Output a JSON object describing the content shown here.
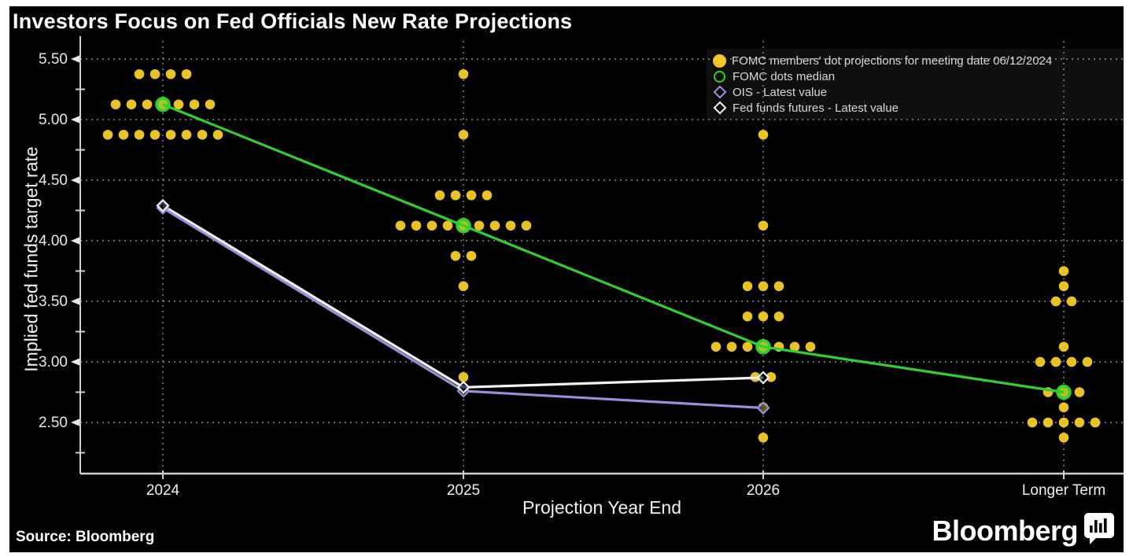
{
  "header": {
    "title": "Investors Focus on Fed Officials New Rate Projections"
  },
  "footer": {
    "source_label": "Source: Bloomberg",
    "brand": "Bloomberg",
    "brand_icon": "bar-chart-bubble-icon"
  },
  "legend": {
    "position": "top-right",
    "items": [
      {
        "label": "FOMC members' dot projections for meeting date 06/12/2024",
        "marker": "filled-circle",
        "color": "#EFC72B"
      },
      {
        "label": "FOMC dots median",
        "marker": "open-circle",
        "color": "#2FD02F"
      },
      {
        "label": "OIS - Latest value",
        "marker": "open-diamond",
        "color": "#9A8FD9"
      },
      {
        "label": "Fed funds futures - Latest value",
        "marker": "open-diamond",
        "color": "#F2F2F2"
      }
    ]
  },
  "chart_data": {
    "type": "scatter",
    "title": "Investors Focus on Fed Officials New Rate Projections",
    "xlabel": "Projection Year End",
    "ylabel": "Implied fed funds target rate",
    "categories": [
      "2024",
      "2025",
      "2026",
      "Longer Term"
    ],
    "y_ticks": [
      "5.50",
      "5.00",
      "4.50",
      "4.00",
      "3.50",
      "3.00",
      "2.50"
    ],
    "y_tick_values": [
      5.5,
      5.0,
      4.5,
      4.0,
      3.5,
      3.0,
      2.5
    ],
    "minor_tick_values": [
      5.25,
      4.75,
      4.25,
      3.75,
      3.25,
      2.75,
      2.25
    ],
    "ylim": [
      2.2,
      5.65
    ],
    "grid": "dashed-both-axes",
    "background": "#000000",
    "colors": {
      "dots": "#E8C227",
      "median": "#2FD02F",
      "ois": "#9A8FD9",
      "futures": "#F2F2F2",
      "grid": "#909090",
      "axis": "#cfcfcf",
      "tick_text": "#e8e8e8"
    },
    "series": [
      {
        "name": "FOMC members' dot projections for meeting date 06/12/2024",
        "type": "dot-plot",
        "color": "#E8C227",
        "clusters": [
          {
            "category": "2024",
            "dots": [
              {
                "rate": 5.375,
                "count": 4
              },
              {
                "rate": 5.125,
                "count": 7
              },
              {
                "rate": 4.875,
                "count": 8
              }
            ]
          },
          {
            "category": "2025",
            "dots": [
              {
                "rate": 5.375,
                "count": 1
              },
              {
                "rate": 4.875,
                "count": 1
              },
              {
                "rate": 4.375,
                "count": 4
              },
              {
                "rate": 4.125,
                "count": 9
              },
              {
                "rate": 3.875,
                "count": 2
              },
              {
                "rate": 3.625,
                "count": 1
              },
              {
                "rate": 2.875,
                "count": 1
              }
            ]
          },
          {
            "category": "2026",
            "dots": [
              {
                "rate": 4.875,
                "count": 1
              },
              {
                "rate": 4.125,
                "count": 1
              },
              {
                "rate": 3.625,
                "count": 3
              },
              {
                "rate": 3.375,
                "count": 3
              },
              {
                "rate": 3.125,
                "count": 7
              },
              {
                "rate": 2.875,
                "count": 2
              },
              {
                "rate": 2.625,
                "count": 1
              },
              {
                "rate": 2.375,
                "count": 1
              }
            ]
          },
          {
            "category": "Longer Term",
            "dots": [
              {
                "rate": 3.75,
                "count": 1
              },
              {
                "rate": 3.625,
                "count": 1
              },
              {
                "rate": 3.5,
                "count": 2
              },
              {
                "rate": 3.125,
                "count": 1
              },
              {
                "rate": 3.0,
                "count": 4
              },
              {
                "rate": 2.75,
                "count": 3
              },
              {
                "rate": 2.625,
                "count": 1
              },
              {
                "rate": 2.5,
                "count": 5
              },
              {
                "rate": 2.375,
                "count": 1
              }
            ]
          }
        ]
      },
      {
        "name": "FOMC dots median",
        "type": "line",
        "marker": "open-circle",
        "color": "#2FD02F",
        "x": [
          "2024",
          "2025",
          "2026",
          "Longer Term"
        ],
        "values": [
          5.125,
          4.125,
          3.125,
          2.75
        ]
      },
      {
        "name": "OIS - Latest value",
        "type": "line",
        "marker": "open-diamond",
        "color": "#9A8FD9",
        "x": [
          "2024",
          "2025",
          "2026"
        ],
        "values": [
          4.27,
          2.76,
          2.62
        ]
      },
      {
        "name": "Fed funds futures - Latest value",
        "type": "line",
        "marker": "open-diamond",
        "color": "#F2F2F2",
        "x": [
          "2024",
          "2025",
          "2026"
        ],
        "values": [
          4.29,
          2.79,
          2.87
        ]
      }
    ]
  }
}
